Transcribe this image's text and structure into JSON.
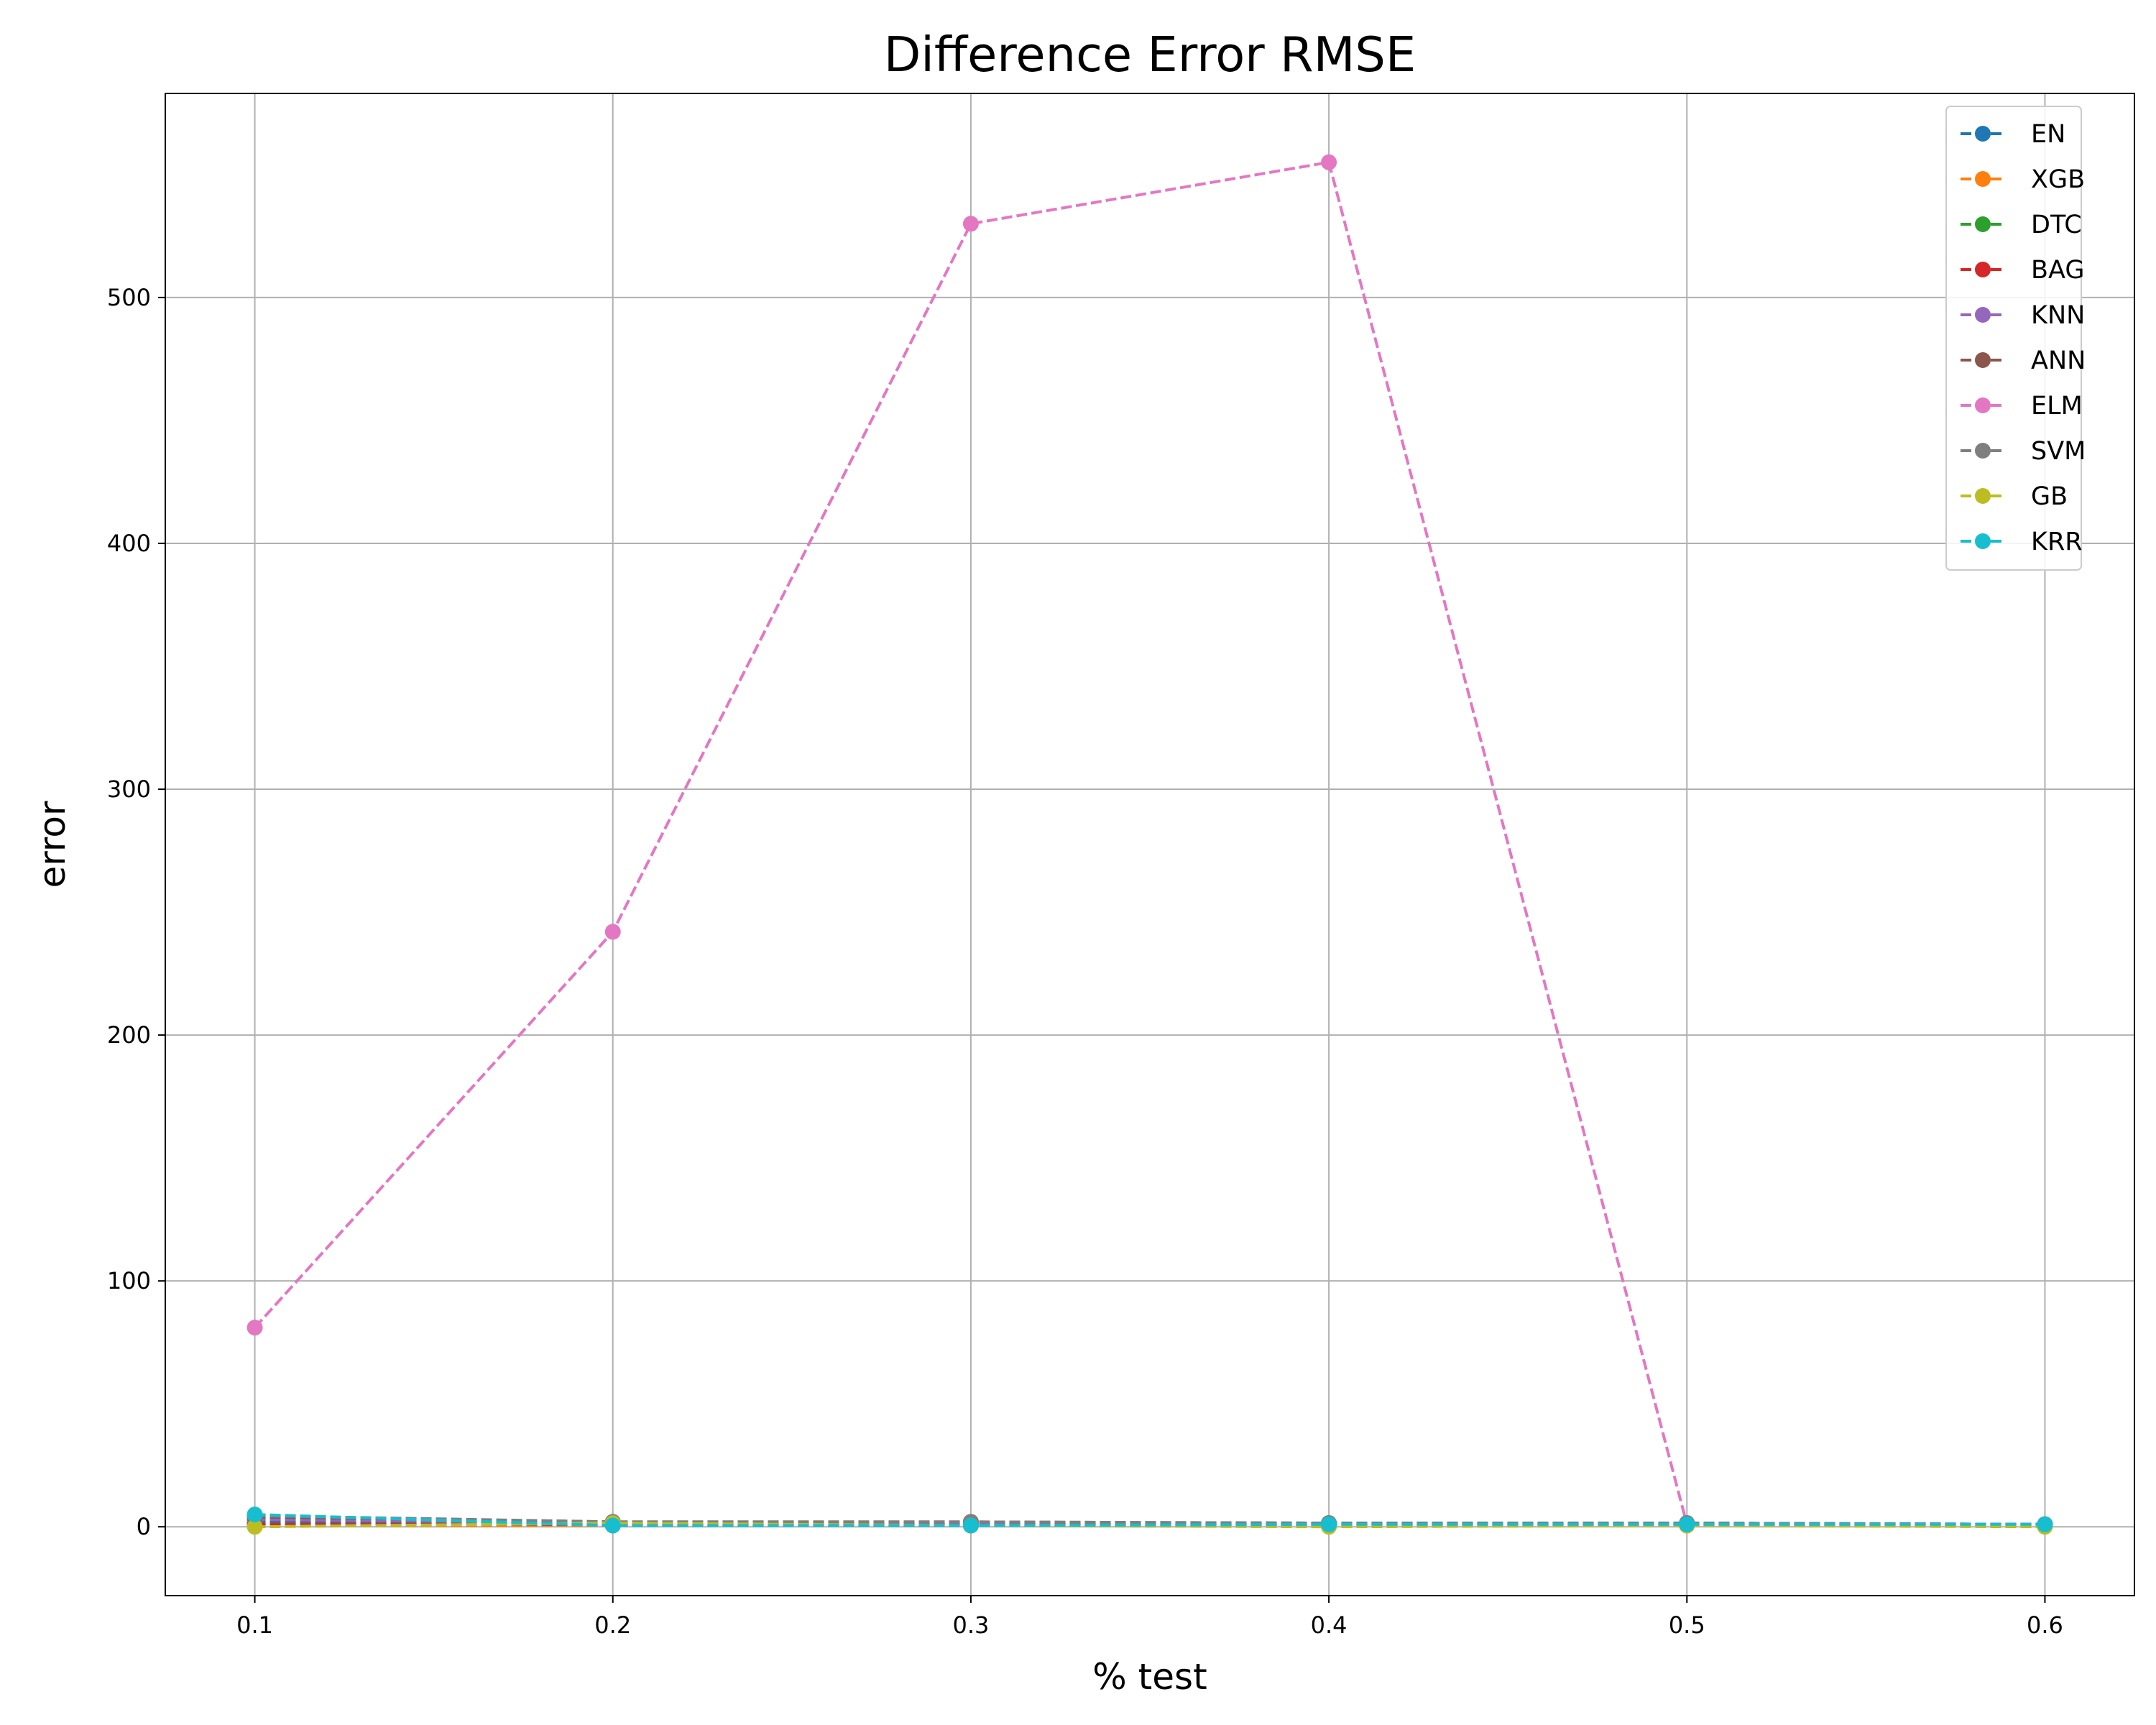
{
  "chart_data": {
    "type": "line",
    "title": "Difference Error RMSE",
    "xlabel": "% test",
    "ylabel": "error",
    "x": [
      0.1,
      0.2,
      0.3,
      0.4,
      0.5,
      0.6
    ],
    "x_ticks": [
      "0.1",
      "0.2",
      "0.3",
      "0.4",
      "0.5",
      "0.6"
    ],
    "y_ticks": [
      "0",
      "100",
      "200",
      "300",
      "400",
      "500"
    ],
    "xlim": [
      0.075,
      0.625
    ],
    "ylim": [
      -28,
      583
    ],
    "grid": true,
    "legend_position": "top-right",
    "line_style": "dashed",
    "marker": "circle",
    "series": [
      {
        "name": "EN",
        "color": "#1f77b4",
        "values": [
          2.0,
          1.0,
          1.0,
          1.0,
          1.0,
          1.0
        ]
      },
      {
        "name": "XGB",
        "color": "#ff7f0e",
        "values": [
          0.5,
          0.5,
          0.5,
          0.5,
          0.5,
          0.5
        ]
      },
      {
        "name": "DTC",
        "color": "#2ca02c",
        "values": [
          1.0,
          1.0,
          1.0,
          1.0,
          1.0,
          1.0
        ]
      },
      {
        "name": "BAG",
        "color": "#d62728",
        "values": [
          1.0,
          1.0,
          1.0,
          1.0,
          1.0,
          1.0
        ]
      },
      {
        "name": "KNN",
        "color": "#9467bd",
        "values": [
          3.0,
          1.5,
          1.5,
          1.5,
          1.5,
          1.0
        ]
      },
      {
        "name": "ANN",
        "color": "#8c564b",
        "values": [
          4.0,
          2.0,
          2.0,
          1.5,
          1.5,
          1.0
        ]
      },
      {
        "name": "ELM",
        "color": "#e377c2",
        "values": [
          81,
          242,
          530,
          555,
          1,
          null
        ]
      },
      {
        "name": "SVM",
        "color": "#7f7f7f",
        "values": [
          4.5,
          2.0,
          2.0,
          1.5,
          1.5,
          1.0
        ]
      },
      {
        "name": "GB",
        "color": "#bcbd22",
        "values": [
          0.0,
          1.5,
          0.5,
          0.0,
          0.5,
          0.0
        ]
      },
      {
        "name": "KRR",
        "color": "#17becf",
        "values": [
          5.0,
          0.5,
          0.5,
          1.0,
          1.0,
          1.0
        ]
      }
    ]
  }
}
